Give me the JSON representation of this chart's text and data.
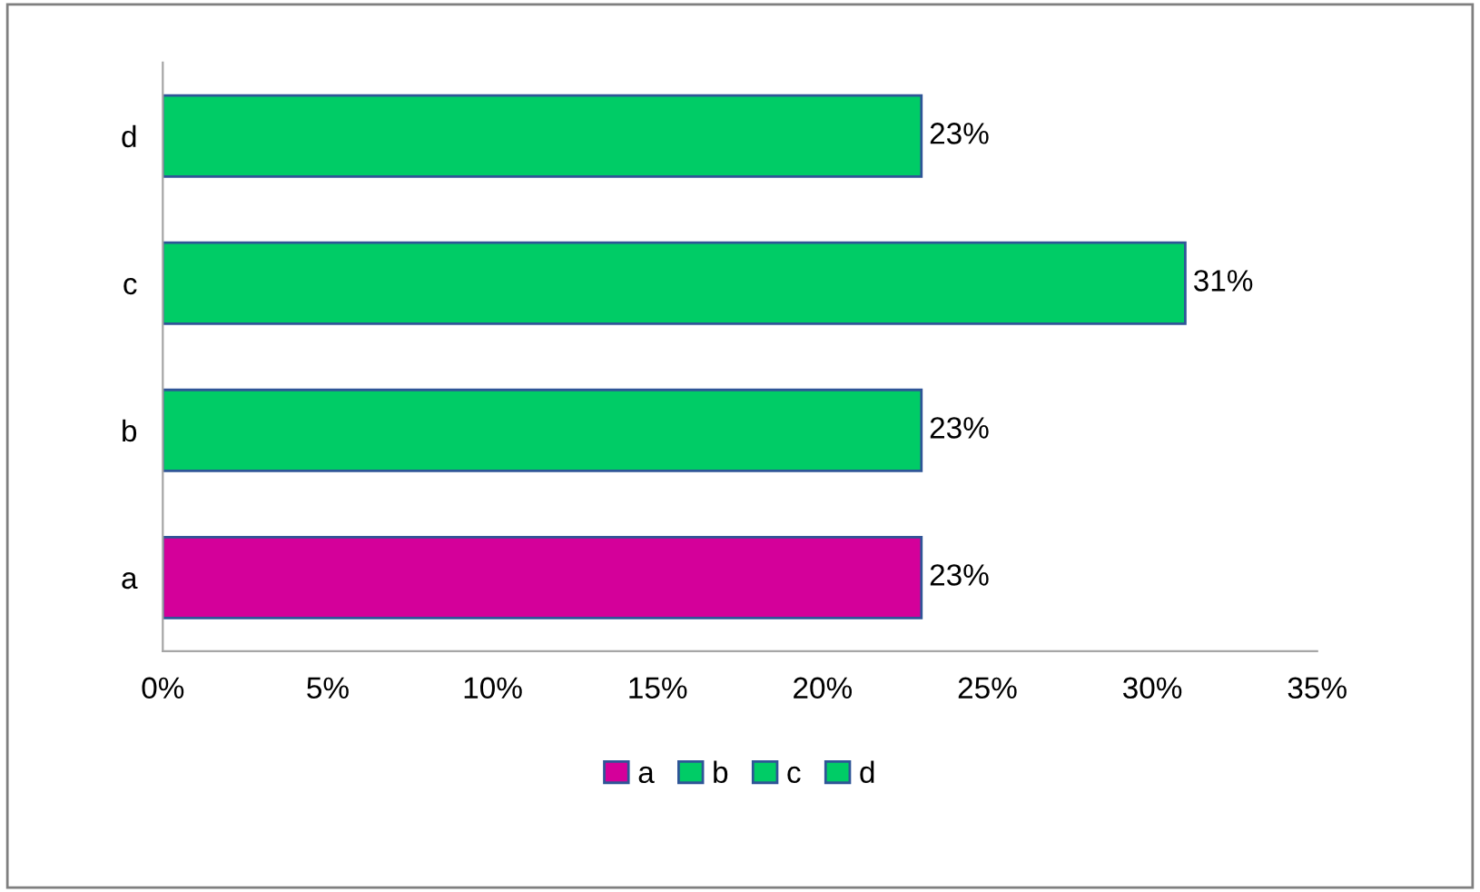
{
  "chart_data": {
    "type": "bar",
    "orientation": "horizontal",
    "categories": [
      "d",
      "c",
      "b",
      "a"
    ],
    "series": [
      {
        "name": "a",
        "color": "#d4009a",
        "values": [
          null,
          null,
          null,
          23
        ],
        "value_labels": [
          null,
          null,
          null,
          "23%"
        ]
      },
      {
        "name": "b",
        "color": "#00cc66",
        "values": [
          null,
          null,
          23,
          null
        ],
        "value_labels": [
          null,
          null,
          "23%",
          null
        ]
      },
      {
        "name": "c",
        "color": "#00cc66",
        "values": [
          null,
          31,
          null,
          null
        ],
        "value_labels": [
          null,
          "31%",
          null,
          null
        ]
      },
      {
        "name": "d",
        "color": "#00cc66",
        "values": [
          23,
          null,
          null,
          null
        ],
        "value_labels": [
          "23%",
          null,
          null,
          null
        ]
      }
    ],
    "xlim": [
      0,
      35
    ],
    "xticks": [
      {
        "value": 0,
        "label": "0%"
      },
      {
        "value": 5,
        "label": "5%"
      },
      {
        "value": 10,
        "label": "10%"
      },
      {
        "value": 15,
        "label": "15%"
      },
      {
        "value": 20,
        "label": "20%"
      },
      {
        "value": 25,
        "label": "25%"
      },
      {
        "value": 30,
        "label": "30%"
      },
      {
        "value": 35,
        "label": "35%"
      }
    ],
    "legend": "bottom",
    "grid": false
  }
}
